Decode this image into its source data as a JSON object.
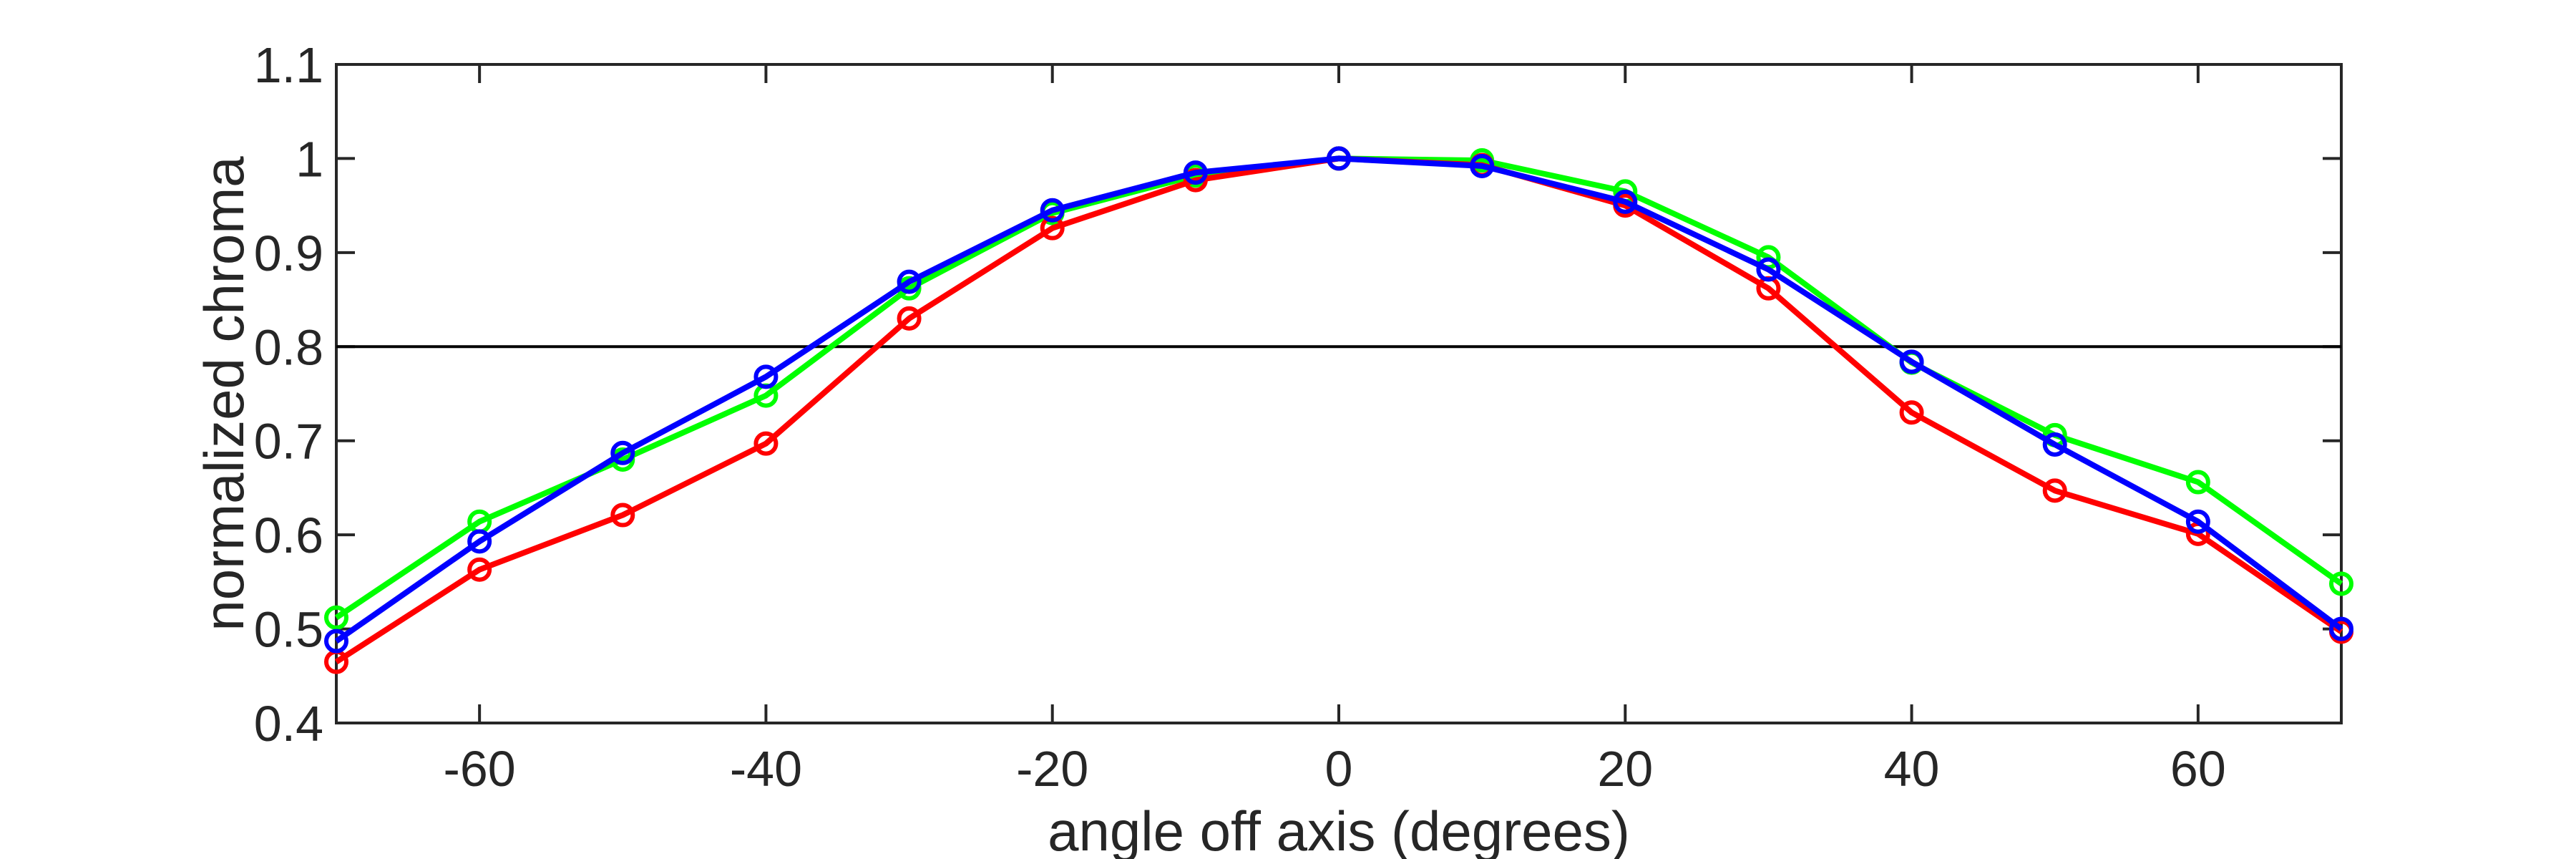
{
  "chart_data": {
    "type": "line",
    "title": "",
    "xlabel": "angle off axis (degrees)",
    "ylabel": "normalized chroma",
    "xlim": [
      -70,
      70
    ],
    "ylim": [
      0.4,
      1.1
    ],
    "xticks": [
      -60,
      -40,
      -20,
      0,
      20,
      40,
      60
    ],
    "xtick_labels": [
      "-60",
      "-40",
      "-20",
      "0",
      "20",
      "40",
      "60"
    ],
    "yticks": [
      0.4,
      0.5,
      0.6,
      0.7,
      0.8,
      0.9,
      1.0,
      1.1
    ],
    "ytick_labels": [
      "0.4",
      "0.5",
      "0.6",
      "0.7",
      "0.8",
      "0.9",
      "1",
      "1.1"
    ],
    "grid": false,
    "legend": "none",
    "reference_line": {
      "y": 0.8,
      "color": "#000000"
    },
    "x": [
      -70,
      -60,
      -50,
      -40,
      -30,
      -20,
      -10,
      0,
      10,
      20,
      30,
      40,
      50,
      60,
      70
    ],
    "series": [
      {
        "color": "#00ff00",
        "values": [
          0.512,
          0.614,
          0.68,
          0.748,
          0.862,
          0.942,
          0.982,
          1.0,
          0.998,
          0.965,
          0.895,
          0.783,
          0.706,
          0.656,
          0.548
        ]
      },
      {
        "color": "#ff0000",
        "values": [
          0.465,
          0.563,
          0.621,
          0.697,
          0.83,
          0.926,
          0.977,
          1.0,
          0.993,
          0.95,
          0.862,
          0.73,
          0.647,
          0.601,
          0.497
        ]
      },
      {
        "color": "#0000ff",
        "values": [
          0.487,
          0.593,
          0.687,
          0.768,
          0.869,
          0.945,
          0.985,
          1.0,
          0.992,
          0.954,
          0.882,
          0.784,
          0.696,
          0.614,
          0.5
        ]
      }
    ]
  }
}
